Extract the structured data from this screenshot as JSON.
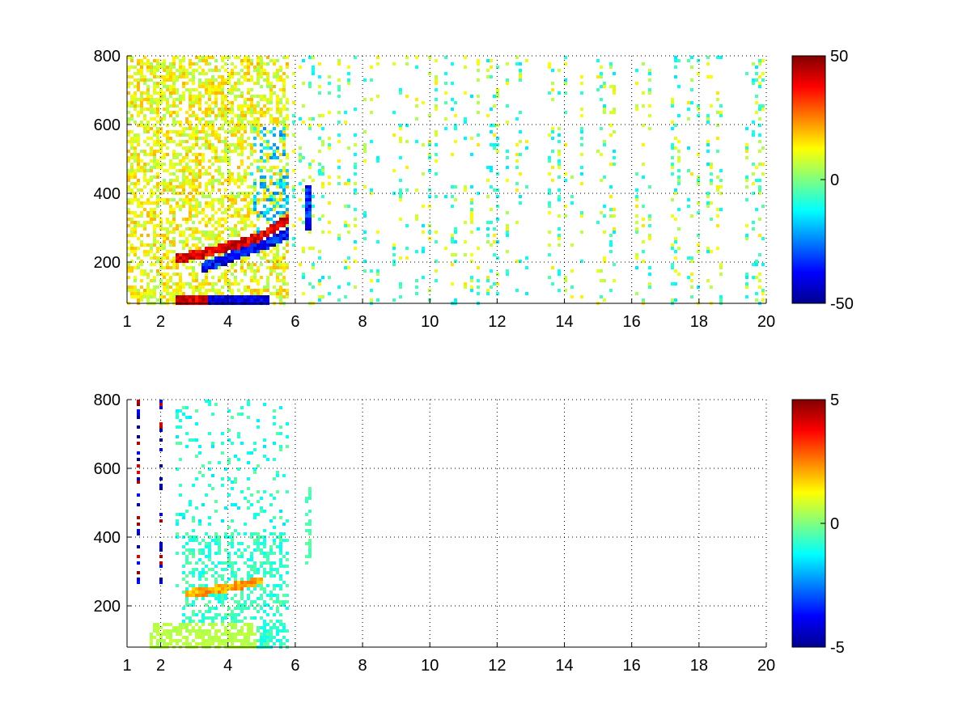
{
  "chart_data": [
    {
      "type": "heatmap",
      "title": "",
      "xlabel": "",
      "ylabel": "",
      "xlim": [
        1,
        20
      ],
      "ylim": [
        80,
        800
      ],
      "xticks": [
        1,
        2,
        4,
        6,
        8,
        10,
        12,
        14,
        16,
        18,
        20
      ],
      "yticks": [
        200,
        400,
        600,
        800
      ],
      "grid": true,
      "colorbar": {
        "colormap": "jet",
        "range": [
          -50,
          50
        ],
        "ticks": [
          50,
          0,
          -50
        ]
      },
      "features": [
        {
          "description": "dense high-amplitude values",
          "x_range": [
            1,
            5.8
          ],
          "y_range": [
            80,
            800
          ]
        },
        {
          "description": "red band (~+40)",
          "path_x": [
            2.4,
            3.0,
            3.6,
            4.2,
            4.8,
            5.3,
            5.7
          ],
          "path_y": [
            215,
            225,
            240,
            255,
            275,
            300,
            330
          ]
        },
        {
          "description": "blue band (~-40)",
          "path_x": [
            3.2,
            3.8,
            4.4,
            5.0,
            5.5,
            5.8
          ],
          "path_y": [
            190,
            210,
            235,
            255,
            275,
            290
          ]
        },
        {
          "description": "sparse near-zero values",
          "x_range": [
            6,
            20
          ],
          "y_range": [
            80,
            800
          ]
        }
      ]
    },
    {
      "type": "heatmap",
      "title": "",
      "xlabel": "",
      "ylabel": "",
      "xlim": [
        1,
        20
      ],
      "ylim": [
        80,
        800
      ],
      "xticks": [
        1,
        2,
        4,
        6,
        8,
        10,
        12,
        14,
        16,
        18,
        20
      ],
      "yticks": [
        200,
        400,
        600,
        800
      ],
      "grid": true,
      "colorbar": {
        "colormap": "jet",
        "range": [
          -5,
          5
        ],
        "ticks": [
          5,
          0,
          -5
        ]
      },
      "features": [
        {
          "description": "non-zero values only in region",
          "x_range": [
            1,
            6.8
          ],
          "y_range": [
            80,
            800
          ]
        },
        {
          "description": "orange band (~+2)",
          "path_x": [
            2.7,
            3.2,
            3.8,
            4.4,
            5.0
          ],
          "path_y": [
            240,
            245,
            255,
            265,
            280
          ]
        },
        {
          "description": "light green floor (~+0.5)",
          "x_range": [
            1.6,
            4.8
          ],
          "y_range": [
            80,
            160
          ]
        }
      ]
    }
  ]
}
